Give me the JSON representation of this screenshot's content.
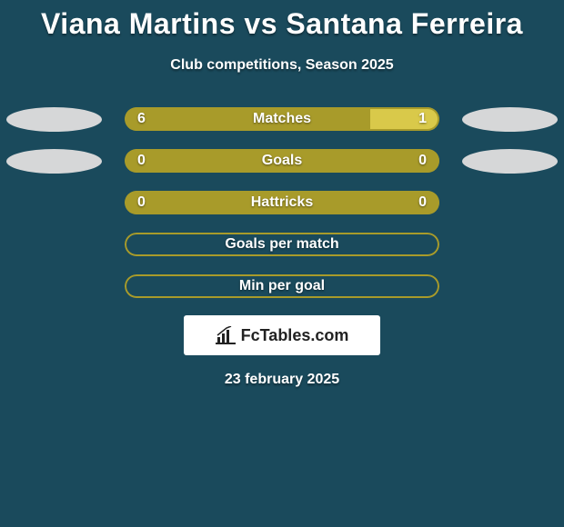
{
  "title": "Viana Martins vs Santana Ferreira",
  "subtitle": "Club competitions, Season 2025",
  "date": "23 february 2025",
  "logo_text": "FcTables.com",
  "colors": {
    "background": "#1a4a5c",
    "accent": "#a89b2a",
    "accent_light": "#d9c94a",
    "ellipse": "#d6d7d8",
    "white": "#ffffff",
    "logo_text": "#222222"
  },
  "bars": [
    {
      "label": "Matches",
      "left_value": "6",
      "right_value": "1",
      "left_pct": 78,
      "right_pct": 22,
      "left_color": "#a89b2a",
      "right_color": "#d9c94a",
      "outline_color": "#a89b2a",
      "has_left_ellipse": true,
      "has_right_ellipse": true
    },
    {
      "label": "Goals",
      "left_value": "0",
      "right_value": "0",
      "left_pct": 100,
      "right_pct": 0,
      "left_color": "#a89b2a",
      "right_color": "#d9c94a",
      "outline_color": "#a89b2a",
      "has_left_ellipse": true,
      "has_right_ellipse": true
    },
    {
      "label": "Hattricks",
      "left_value": "0",
      "right_value": "0",
      "left_pct": 100,
      "right_pct": 0,
      "left_color": "#a89b2a",
      "right_color": "#d9c94a",
      "outline_color": "#a89b2a",
      "has_left_ellipse": false,
      "has_right_ellipse": false
    },
    {
      "label": "Goals per match",
      "left_value": "",
      "right_value": "",
      "left_pct": 0,
      "right_pct": 0,
      "left_color": "#a89b2a",
      "right_color": "#d9c94a",
      "outline_color": "#a89b2a",
      "has_left_ellipse": false,
      "has_right_ellipse": false
    },
    {
      "label": "Min per goal",
      "left_value": "",
      "right_value": "",
      "left_pct": 0,
      "right_pct": 0,
      "left_color": "#a89b2a",
      "right_color": "#d9c94a",
      "outline_color": "#a89b2a",
      "has_left_ellipse": false,
      "has_right_ellipse": false
    }
  ]
}
